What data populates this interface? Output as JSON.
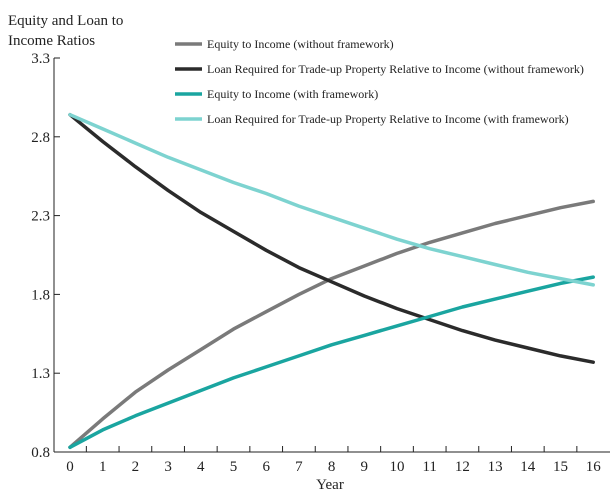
{
  "chart_data": {
    "type": "line",
    "ylabel_lines": [
      "Equity and Loan to",
      "Income Ratios"
    ],
    "xlabel": "Year",
    "x": [
      0,
      1,
      2,
      3,
      4,
      5,
      6,
      7,
      8,
      9,
      10,
      11,
      12,
      13,
      14,
      15,
      16
    ],
    "ylim": [
      0.8,
      3.3
    ],
    "yticks": [
      "0.8",
      "1.3",
      "1.8",
      "2.3",
      "2.8",
      "3.3"
    ],
    "xticks": [
      "0",
      "1",
      "2",
      "3",
      "4",
      "5",
      "6",
      "7",
      "8",
      "9",
      "10",
      "11",
      "12",
      "13",
      "14",
      "15",
      "16"
    ],
    "grid": false,
    "legend_position": "top-right",
    "series": [
      {
        "name": "Equity to Income (without framework)",
        "color": "#7a7a7a",
        "values": [
          0.83,
          1.01,
          1.18,
          1.32,
          1.45,
          1.58,
          1.69,
          1.8,
          1.9,
          1.98,
          2.06,
          2.13,
          2.19,
          2.25,
          2.3,
          2.35,
          2.39
        ]
      },
      {
        "name": "Loan Required for Trade-up Property Relative to Income (without framework)",
        "color": "#2b2b2b",
        "values": [
          2.94,
          2.77,
          2.61,
          2.46,
          2.32,
          2.2,
          2.08,
          1.97,
          1.88,
          1.79,
          1.71,
          1.64,
          1.57,
          1.51,
          1.46,
          1.41,
          1.37
        ]
      },
      {
        "name": "Equity to Income (with framework)",
        "color": "#1aa5a0",
        "values": [
          0.83,
          0.94,
          1.03,
          1.11,
          1.19,
          1.27,
          1.34,
          1.41,
          1.48,
          1.54,
          1.6,
          1.66,
          1.72,
          1.77,
          1.82,
          1.87,
          1.91
        ]
      },
      {
        "name": "Loan Required for Trade-up Property Relative to Income (with framework)",
        "color": "#7dd3d0",
        "values": [
          2.94,
          2.85,
          2.76,
          2.67,
          2.59,
          2.51,
          2.44,
          2.36,
          2.29,
          2.22,
          2.15,
          2.09,
          2.04,
          1.99,
          1.94,
          1.9,
          1.86
        ]
      }
    ]
  }
}
